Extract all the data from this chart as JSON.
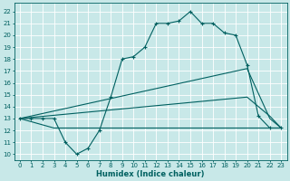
{
  "xlabel": "Humidex (Indice chaleur)",
  "bg_color": "#c8e8e8",
  "line_color": "#006060",
  "grid_color": "#a8c8c8",
  "xlim": [
    -0.5,
    23.5
  ],
  "ylim": [
    9.5,
    22.7
  ],
  "xticks": [
    0,
    1,
    2,
    3,
    4,
    5,
    6,
    7,
    8,
    9,
    10,
    11,
    12,
    13,
    14,
    15,
    16,
    17,
    18,
    19,
    20,
    21,
    22,
    23
  ],
  "yticks": [
    10,
    11,
    12,
    13,
    14,
    15,
    16,
    17,
    18,
    19,
    20,
    21,
    22
  ],
  "line1_x": [
    0,
    1,
    2,
    3,
    4,
    5,
    6,
    7,
    8,
    9,
    10,
    11,
    12,
    13,
    14,
    15,
    16,
    17,
    18,
    19,
    20,
    21,
    22,
    23
  ],
  "line1_y": [
    13,
    13,
    13,
    13,
    11,
    10,
    10.5,
    12,
    14.8,
    18,
    18.2,
    19,
    21,
    21,
    21.2,
    22,
    21,
    21,
    20.2,
    20,
    17.5,
    13.2,
    12.2,
    12.2
  ],
  "line2_x": [
    0,
    3,
    22,
    23
  ],
  "line2_y": [
    13,
    12.2,
    12.2,
    12.2
  ],
  "line3_x": [
    0,
    20,
    22,
    23
  ],
  "line3_y": [
    13,
    17.2,
    13,
    12.2
  ],
  "line4_x": [
    0,
    20,
    22,
    23
  ],
  "line4_y": [
    13,
    14.8,
    13.2,
    12.2
  ],
  "tick_fontsize": 5.0,
  "xlabel_fontsize": 6.0
}
